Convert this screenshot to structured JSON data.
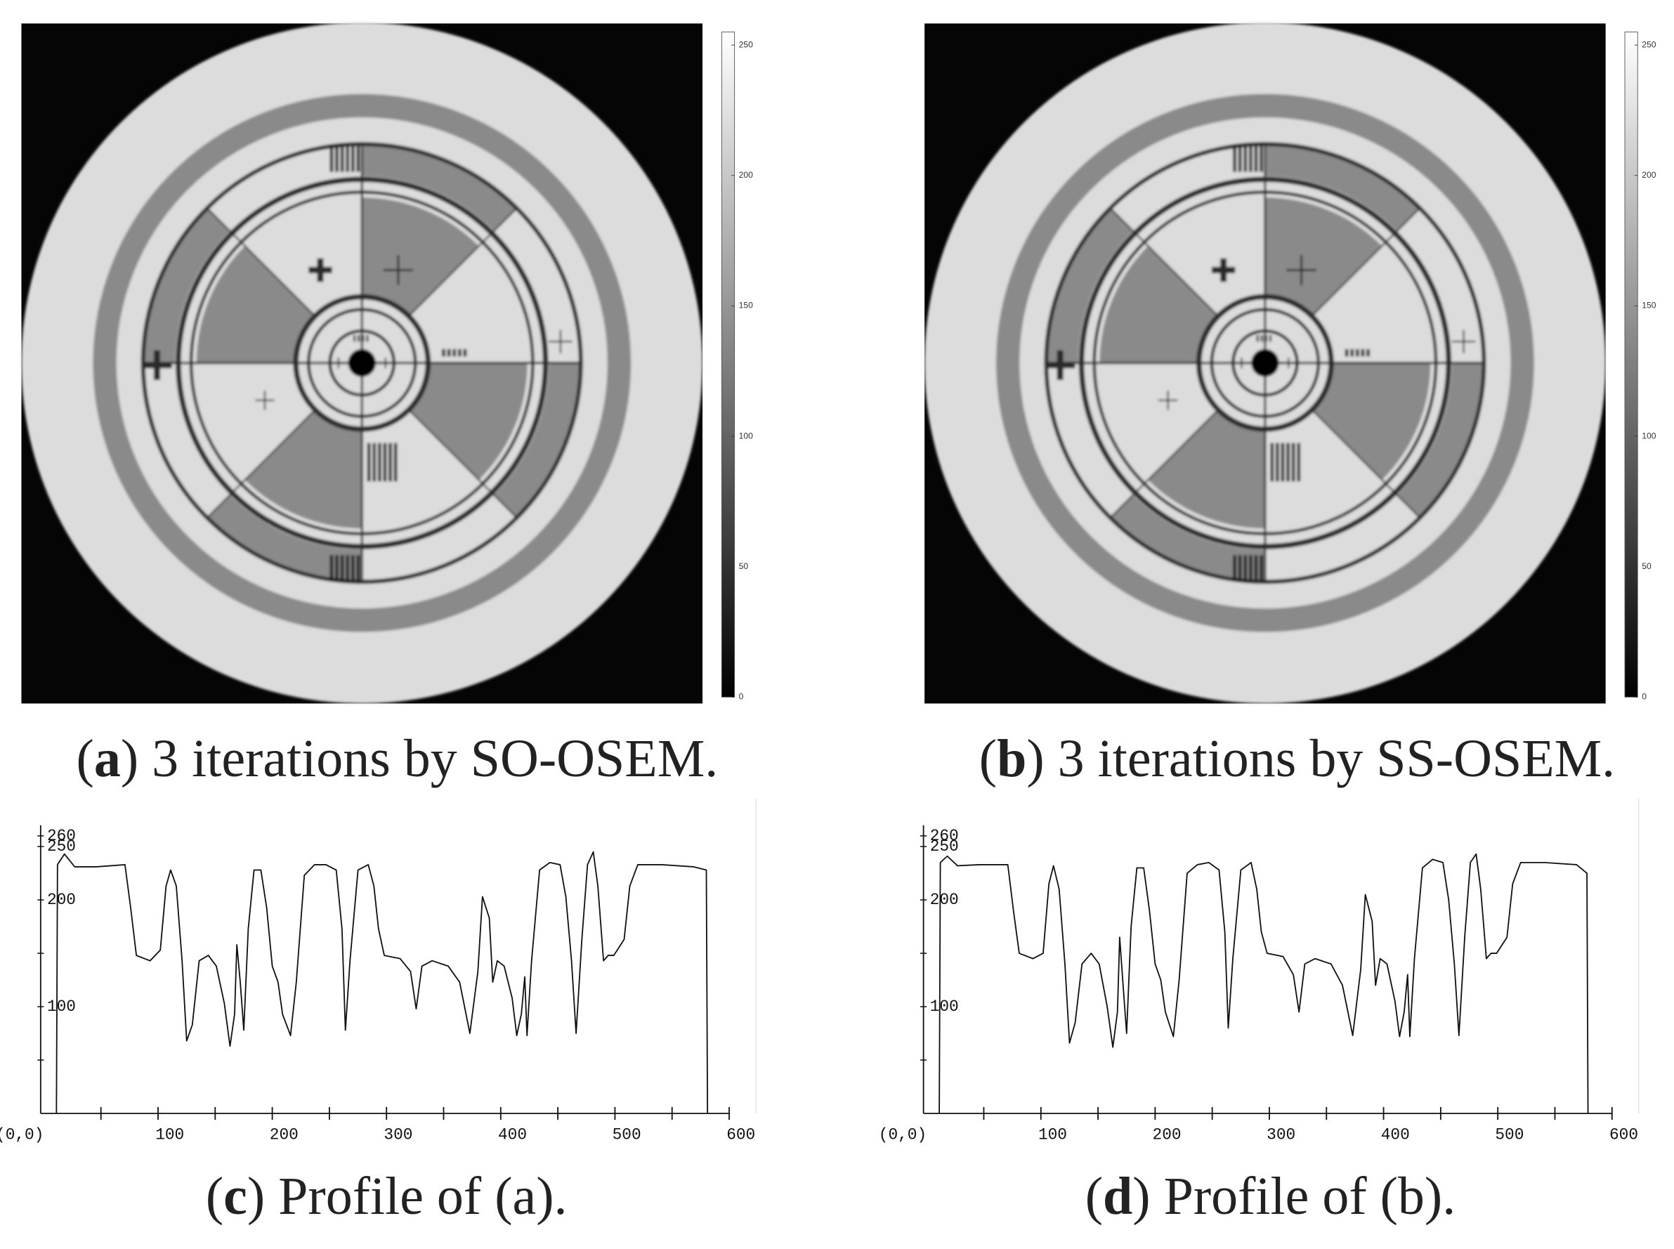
{
  "chart_data": [
    {
      "type": "image",
      "caption": "(a) 3 iterations by SO-OSEM.",
      "colorbar": {
        "clim": [
          0,
          255
        ],
        "ticks": [
          0,
          50,
          100,
          150,
          200,
          250
        ]
      }
    },
    {
      "type": "image",
      "caption": "(b) 3 iterations by SS-OSEM.",
      "colorbar": {
        "clim": [
          0,
          255
        ],
        "ticks": [
          0,
          50,
          100,
          150,
          200,
          250
        ]
      }
    },
    {
      "type": "line",
      "caption": "(c) Profile of (a).",
      "color": "#111111",
      "x": [
        11,
        12,
        18,
        27,
        46,
        71,
        76,
        81,
        93,
        102,
        107,
        111,
        116,
        121,
        125,
        130,
        136,
        144,
        151,
        158,
        163,
        167,
        169,
        172,
        175,
        179,
        184,
        190,
        195,
        200,
        205,
        209,
        216,
        221,
        228,
        237,
        247,
        256,
        261,
        264,
        268,
        275,
        284,
        289,
        293,
        298,
        312,
        321,
        326,
        331,
        340,
        354,
        364,
        373,
        380,
        384,
        390,
        393,
        397,
        403,
        410,
        414,
        418,
        421,
        423,
        427,
        434,
        443,
        452,
        457,
        462,
        466,
        471,
        476,
        481,
        485,
        490,
        494,
        499,
        508,
        513,
        520,
        541,
        569,
        580,
        581
      ],
      "values": [
        0,
        233,
        243,
        231,
        231,
        233,
        193,
        148,
        143,
        153,
        213,
        228,
        213,
        143,
        68,
        83,
        143,
        148,
        138,
        103,
        63,
        93,
        158,
        123,
        78,
        173,
        228,
        228,
        193,
        138,
        123,
        93,
        73,
        123,
        223,
        233,
        233,
        228,
        173,
        78,
        143,
        228,
        233,
        213,
        173,
        148,
        145,
        133,
        98,
        138,
        143,
        138,
        123,
        75,
        133,
        203,
        183,
        123,
        143,
        138,
        108,
        73,
        93,
        128,
        73,
        143,
        228,
        235,
        233,
        203,
        143,
        75,
        163,
        233,
        245,
        213,
        143,
        148,
        148,
        163,
        213,
        233,
        233,
        231,
        228,
        0
      ],
      "xlim": [
        0,
        600
      ],
      "ylim": [
        0,
        270
      ],
      "xticks": [
        {
          "value": 0,
          "label": "(0,0)"
        },
        100,
        200,
        300,
        400,
        500,
        600
      ],
      "x_minor_ticks": [
        50,
        150,
        250,
        350,
        450,
        550
      ],
      "yticks": [
        100,
        200,
        250,
        260
      ],
      "y_minor_ticks": [
        50,
        150
      ]
    },
    {
      "type": "line",
      "caption": "(d) Profile of (b).",
      "color": "#111111",
      "x": [
        11,
        12,
        18,
        27,
        46,
        71,
        76,
        81,
        93,
        102,
        107,
        111,
        116,
        121,
        125,
        130,
        136,
        144,
        151,
        158,
        163,
        167,
        169,
        172,
        175,
        179,
        184,
        190,
        195,
        200,
        205,
        209,
        216,
        221,
        228,
        237,
        247,
        256,
        261,
        264,
        268,
        275,
        284,
        289,
        293,
        298,
        312,
        321,
        326,
        331,
        340,
        354,
        364,
        373,
        380,
        384,
        390,
        393,
        397,
        403,
        410,
        414,
        418,
        421,
        423,
        427,
        434,
        443,
        452,
        457,
        462,
        466,
        471,
        476,
        481,
        485,
        490,
        494,
        499,
        508,
        513,
        520,
        541,
        569,
        578,
        579
      ],
      "values": [
        0,
        235,
        241,
        232,
        233,
        233,
        190,
        150,
        145,
        150,
        215,
        232,
        210,
        140,
        66,
        85,
        140,
        150,
        140,
        100,
        62,
        95,
        165,
        120,
        75,
        175,
        230,
        230,
        190,
        140,
        125,
        95,
        72,
        125,
        225,
        233,
        235,
        228,
        170,
        80,
        145,
        228,
        235,
        210,
        170,
        150,
        147,
        130,
        95,
        140,
        145,
        140,
        120,
        73,
        135,
        205,
        180,
        120,
        145,
        140,
        105,
        72,
        95,
        130,
        72,
        145,
        230,
        238,
        235,
        200,
        140,
        73,
        165,
        235,
        243,
        210,
        145,
        150,
        150,
        165,
        215,
        235,
        235,
        233,
        225,
        0
      ],
      "xlim": [
        0,
        600
      ],
      "ylim": [
        0,
        270
      ],
      "xticks": [
        {
          "value": 0,
          "label": "(0,0)"
        },
        100,
        200,
        300,
        400,
        500,
        600
      ],
      "x_minor_ticks": [
        50,
        150,
        250,
        350,
        450,
        550
      ],
      "yticks": [
        100,
        200,
        250,
        260
      ],
      "y_minor_ticks": [
        50,
        150
      ]
    }
  ]
}
